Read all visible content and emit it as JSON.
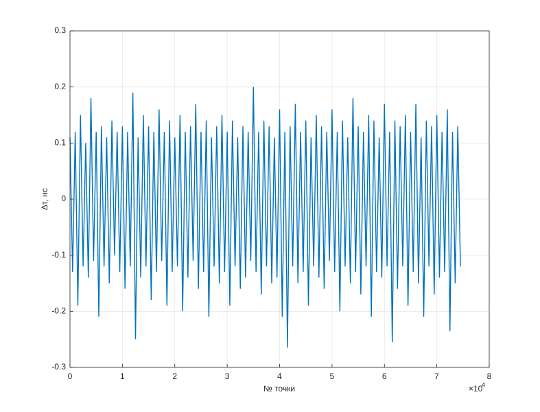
{
  "chart_data": {
    "type": "line",
    "x_label": "№ точки",
    "y_label": "Δτ, нс",
    "x_multiplier": {
      "base": "×10",
      "exponent": "4"
    },
    "xlim": [
      0,
      80000
    ],
    "xticks": [
      0,
      {
        "value": 10000,
        "label": "1"
      },
      {
        "value": 20000,
        "label": "2"
      },
      {
        "value": 30000,
        "label": "3"
      },
      {
        "value": 40000,
        "label": "4"
      },
      {
        "value": 50000,
        "label": "5"
      },
      {
        "value": 60000,
        "label": "6"
      },
      {
        "value": 70000,
        "label": "7"
      },
      {
        "value": 80000,
        "label": "8"
      }
    ],
    "ylim": [
      -0.3,
      0.3
    ],
    "yticks": [
      -0.3,
      -0.2,
      -0.1,
      0,
      0.1,
      0.2,
      0.3
    ],
    "grid": true,
    "x": [
      0,
      500,
      1000,
      1500,
      2000,
      2500,
      3000,
      3500,
      4000,
      4500,
      5000,
      5500,
      6000,
      6500,
      7000,
      7500,
      8000,
      8500,
      9000,
      9500,
      10000,
      10500,
      11000,
      11500,
      12000,
      12500,
      13000,
      13500,
      14000,
      14500,
      15000,
      15500,
      16000,
      16500,
      17000,
      17500,
      18000,
      18500,
      19000,
      19500,
      20000,
      20500,
      21000,
      21500,
      22000,
      22500,
      23000,
      23500,
      24000,
      24500,
      25000,
      25500,
      26000,
      26500,
      27000,
      27500,
      28000,
      28500,
      29000,
      29500,
      30000,
      30500,
      31000,
      31500,
      32000,
      32500,
      33000,
      33500,
      34000,
      34500,
      35000,
      35500,
      36000,
      36500,
      37000,
      37500,
      38000,
      38500,
      39000,
      39500,
      40000,
      40500,
      41000,
      41500,
      42000,
      42500,
      43000,
      43500,
      44000,
      44500,
      45000,
      45500,
      46000,
      46500,
      47000,
      47500,
      48000,
      48500,
      49000,
      49500,
      50000,
      50500,
      51000,
      51500,
      52000,
      52500,
      53000,
      53500,
      54000,
      54500,
      55000,
      55500,
      56000,
      56500,
      57000,
      57500,
      58000,
      58500,
      59000,
      59500,
      60000,
      60500,
      61000,
      61500,
      62000,
      62500,
      63000,
      63500,
      64000,
      64500,
      65000,
      65500,
      66000,
      66500,
      67000,
      67500,
      68000,
      68500,
      69000,
      69500,
      70000,
      70500,
      71000,
      71500,
      72000,
      72500,
      73000,
      73500,
      74000,
      74500
    ],
    "series": [
      {
        "color": "#0072bd",
        "values": [
          0.11,
          -0.13,
          0.12,
          -0.19,
          0.15,
          -0.12,
          0.1,
          -0.14,
          0.18,
          -0.11,
          0.12,
          -0.21,
          0.13,
          -0.12,
          0.11,
          -0.15,
          0.14,
          -0.1,
          0.12,
          -0.13,
          0.13,
          -0.16,
          0.12,
          -0.12,
          0.19,
          -0.25,
          0.11,
          -0.14,
          0.15,
          -0.12,
          0.13,
          -0.18,
          0.12,
          -0.13,
          0.16,
          -0.11,
          0.12,
          -0.19,
          0.14,
          -0.13,
          0.11,
          -0.12,
          0.15,
          -0.2,
          0.12,
          -0.14,
          0.13,
          -0.11,
          0.17,
          -0.16,
          0.12,
          -0.13,
          0.14,
          -0.21,
          0.11,
          -0.12,
          0.13,
          -0.15,
          0.15,
          -0.13,
          0.12,
          -0.19,
          0.14,
          -0.12,
          0.11,
          -0.16,
          0.13,
          -0.14,
          0.12,
          -0.11,
          0.2,
          -0.13,
          0.12,
          -0.17,
          0.14,
          -0.12,
          0.13,
          -0.15,
          0.11,
          -0.14,
          0.16,
          -0.21,
          0.12,
          -0.265,
          0.13,
          -0.12,
          0.17,
          -0.15,
          0.12,
          -0.13,
          0.14,
          -0.19,
          0.11,
          -0.12,
          0.15,
          -0.14,
          0.13,
          -0.16,
          0.12,
          -0.11,
          0.16,
          -0.13,
          0.12,
          -0.2,
          0.14,
          -0.12,
          0.11,
          -0.15,
          0.18,
          -0.13,
          0.13,
          -0.17,
          0.12,
          -0.12,
          0.15,
          -0.21,
          0.14,
          -0.13,
          0.11,
          -0.14,
          0.17,
          -0.12,
          0.12,
          -0.255,
          0.14,
          -0.16,
          0.13,
          -0.12,
          0.15,
          -0.19,
          0.12,
          -0.13,
          0.17,
          -0.15,
          0.11,
          -0.21,
          0.14,
          -0.12,
          0.13,
          -0.17,
          0.15,
          -0.14,
          0.12,
          -0.13,
          0.16,
          -0.235,
          0.12,
          -0.15,
          0.13,
          -0.12
        ]
      }
    ]
  }
}
